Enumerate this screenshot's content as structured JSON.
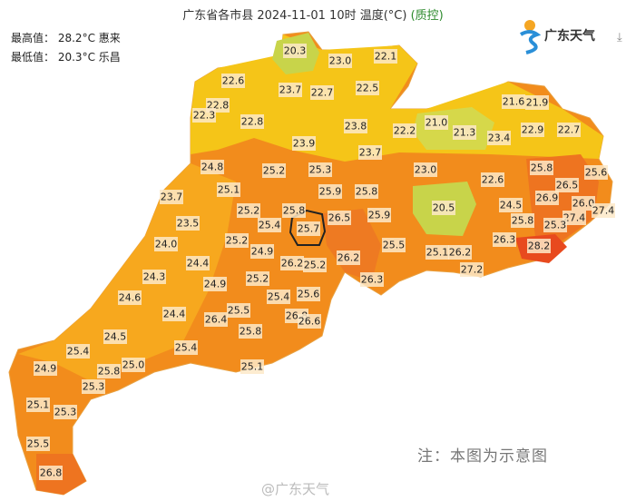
{
  "title": {
    "main": "广东省各市县 2024-11-01 10时 温度(°C)",
    "qc": "(质控)"
  },
  "stats": {
    "max_label": "最高值：",
    "max_value": "28.2°C",
    "max_place": "惠来",
    "min_label": "最低值：",
    "min_value": "20.3°C",
    "min_place": "乐昌"
  },
  "logo": {
    "text": "广东天气",
    "icon": "guangdong-weather-logo-icon"
  },
  "download_icon": "download-icon",
  "note": "注：本图为示意图",
  "watermark": "@广东天气",
  "colors": {
    "green": "#c8d44a",
    "yellow": "#f5c518",
    "light_orange": "#f7a81e",
    "orange": "#f28c1c",
    "dark_orange": "#ee7420",
    "red": "#e84a1e"
  },
  "temperatures": [
    "20.3",
    "23.0",
    "22.1",
    "22.6",
    "23.7",
    "22.7",
    "22.5",
    "22.8",
    "22.3",
    "22.8",
    "23.8",
    "21.6",
    "21.9",
    "21.0",
    "21.3",
    "22.2",
    "22.9",
    "22.7",
    "23.4",
    "23.9",
    "23.7",
    "24.8",
    "25.2",
    "25.3",
    "23.0",
    "25.8",
    "25.6",
    "22.6",
    "23.7",
    "25.1",
    "25.9",
    "25.8",
    "26.5",
    "26.9",
    "26.0",
    "27.4",
    "24.5",
    "25.2",
    "25.8",
    "26.5",
    "25.9",
    "20.5",
    "27.4",
    "25.8",
    "25.3",
    "23.5",
    "25.4",
    "25.7",
    "24.0",
    "25.2",
    "24.9",
    "25.5",
    "26.3",
    "28.2",
    "25.1",
    "26.2",
    "24.4",
    "26.2",
    "25.2",
    "26.2",
    "27.2",
    "24.3",
    "25.2",
    "24.9",
    "26.3",
    "24.6",
    "25.4",
    "25.6",
    "24.4",
    "25.5",
    "26.4",
    "26.8",
    "26.6",
    "24.5",
    "25.8",
    "25.4",
    "25.4",
    "25.0",
    "25.8",
    "25.1",
    "24.9",
    "25.3",
    "25.1",
    "25.3",
    "25.5",
    "26.8"
  ]
}
